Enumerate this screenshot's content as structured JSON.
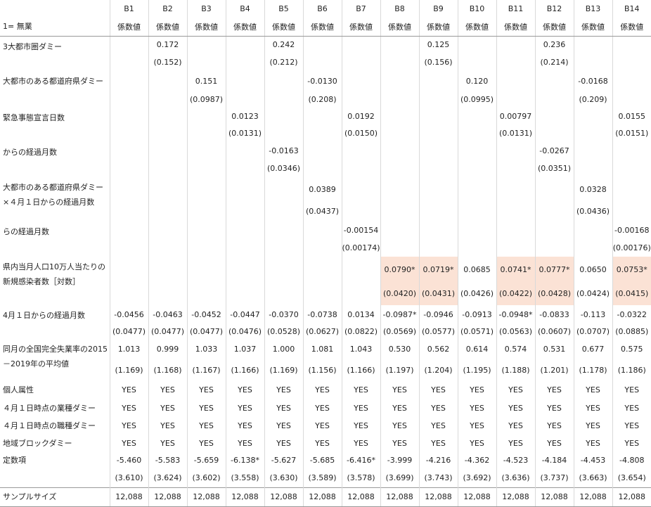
{
  "columns": [
    "B1",
    "B2",
    "B3",
    "B4",
    "B5",
    "B6",
    "B7",
    "B8",
    "B9",
    "B10",
    "B11",
    "B12",
    "B13",
    "B14"
  ],
  "coef_label": "係数値",
  "header_left": "1= 無業",
  "highlight_color": "#fbe2d5",
  "rows": [
    {
      "label": "3大都市圏ダミー",
      "coef": [
        "",
        "0.172",
        "",
        "",
        "0.242",
        "",
        "",
        "",
        "0.125",
        "",
        "",
        "0.236",
        "",
        ""
      ],
      "se": [
        "",
        "(0.152)",
        "",
        "",
        "(0.212)",
        "",
        "",
        "",
        "(0.156)",
        "",
        "",
        "(0.214)",
        "",
        ""
      ]
    },
    {
      "label": "大都市のある都道府県ダミー",
      "coef": [
        "",
        "",
        "0.151",
        "",
        "",
        "-0.0130",
        "",
        "",
        "",
        "0.120",
        "",
        "",
        "-0.0168",
        ""
      ],
      "se": [
        "",
        "",
        "(0.0987)",
        "",
        "",
        "(0.208)",
        "",
        "",
        "",
        "(0.0995)",
        "",
        "",
        "(0.209)",
        ""
      ]
    },
    {
      "label": "緊急事態宣言日数",
      "coef": [
        "",
        "",
        "",
        "0.0123",
        "",
        "",
        "0.0192",
        "",
        "",
        "",
        "0.00797",
        "",
        "",
        "0.0155"
      ],
      "se": [
        "",
        "",
        "",
        "(0.0131)",
        "",
        "",
        "(0.0150)",
        "",
        "",
        "",
        "(0.0131)",
        "",
        "",
        "(0.0151)"
      ]
    },
    {
      "label": "からの経過月数",
      "coef": [
        "",
        "",
        "",
        "",
        "-0.0163",
        "",
        "",
        "",
        "",
        "",
        "",
        "-0.0267",
        "",
        ""
      ],
      "se": [
        "",
        "",
        "",
        "",
        "(0.0346)",
        "",
        "",
        "",
        "",
        "",
        "",
        "(0.0351)",
        "",
        ""
      ]
    },
    {
      "label": "大都市のある都道府県ダミー\n×４月１日からの経過月数",
      "coef": [
        "",
        "",
        "",
        "",
        "",
        "0.0389",
        "",
        "",
        "",
        "",
        "",
        "",
        "0.0328",
        ""
      ],
      "se": [
        "",
        "",
        "",
        "",
        "",
        "(0.0437)",
        "",
        "",
        "",
        "",
        "",
        "",
        "(0.0436)",
        ""
      ]
    },
    {
      "label": "らの経過月数",
      "coef": [
        "",
        "",
        "",
        "",
        "",
        "",
        "-0.00154",
        "",
        "",
        "",
        "",
        "",
        "",
        "-0.00168"
      ],
      "se": [
        "",
        "",
        "",
        "",
        "",
        "",
        "(0.00174)",
        "",
        "",
        "",
        "",
        "",
        "",
        "(0.00176)"
      ]
    },
    {
      "label": "県内当月人口10万人当たりの\n新規感染者数［対数］",
      "coef": [
        "",
        "",
        "",
        "",
        "",
        "",
        "",
        "0.0790*",
        "0.0719*",
        "0.0685",
        "0.0741*",
        "0.0777*",
        "0.0650",
        "0.0753*"
      ],
      "se": [
        "",
        "",
        "",
        "",
        "",
        "",
        "",
        "(0.0420)",
        "(0.0431)",
        "(0.0426)",
        "(0.0422)",
        "(0.0428)",
        "(0.0424)",
        "(0.0415)"
      ],
      "highlight": [
        false,
        false,
        false,
        false,
        false,
        false,
        false,
        true,
        true,
        false,
        true,
        true,
        false,
        true
      ]
    },
    {
      "label": "4月１日からの経過月数",
      "coef": [
        "-0.0456",
        "-0.0463",
        "-0.0452",
        "-0.0447",
        "-0.0370",
        "-0.0738",
        "0.0134",
        "-0.0987*",
        "-0.0946",
        "-0.0913",
        "-0.0948*",
        "-0.0833",
        "-0.113",
        "-0.0322"
      ],
      "se": [
        "(0.0477)",
        "(0.0477)",
        "(0.0477)",
        "(0.0476)",
        "(0.0528)",
        "(0.0627)",
        "(0.0822)",
        "(0.0569)",
        "(0.0577)",
        "(0.0571)",
        "(0.0563)",
        "(0.0607)",
        "(0.0707)",
        "(0.0885)"
      ]
    },
    {
      "label": "同月の全国完全失業率の2015\n－2019年の平均値",
      "coef": [
        "1.013",
        "0.999",
        "1.033",
        "1.037",
        "1.000",
        "1.081",
        "1.043",
        "0.530",
        "0.562",
        "0.614",
        "0.574",
        "0.531",
        "0.677",
        "0.575"
      ],
      "se": [
        "(1.169)",
        "(1.168)",
        "(1.167)",
        "(1.166)",
        "(1.169)",
        "(1.156)",
        "(1.166)",
        "(1.197)",
        "(1.204)",
        "(1.195)",
        "(1.188)",
        "(1.201)",
        "(1.178)",
        "(1.186)"
      ]
    }
  ],
  "yes_rows": [
    {
      "label": "個人属性",
      "values": [
        "YES",
        "YES",
        "YES",
        "YES",
        "YES",
        "YES",
        "YES",
        "YES",
        "YES",
        "YES",
        "YES",
        "YES",
        "YES",
        "YES"
      ]
    },
    {
      "label": "４月１日時点の業種ダミー",
      "values": [
        "YES",
        "YES",
        "YES",
        "YES",
        "YES",
        "YES",
        "YES",
        "YES",
        "YES",
        "YES",
        "YES",
        "YES",
        "YES",
        "YES"
      ]
    },
    {
      "label": "４月１日時点の職種ダミー",
      "values": [
        "YES",
        "YES",
        "YES",
        "YES",
        "YES",
        "YES",
        "YES",
        "YES",
        "YES",
        "YES",
        "YES",
        "YES",
        "YES",
        "YES"
      ]
    },
    {
      "label": "地域ブロックダミー",
      "values": [
        "YES",
        "YES",
        "YES",
        "YES",
        "YES",
        "YES",
        "YES",
        "YES",
        "YES",
        "YES",
        "YES",
        "YES",
        "YES",
        "YES"
      ]
    }
  ],
  "constant": {
    "label": "定数項",
    "coef": [
      "-5.460",
      "-5.583",
      "-5.659",
      "-6.138*",
      "-5.627",
      "-5.685",
      "-6.416*",
      "-3.999",
      "-4.216",
      "-4.362",
      "-4.523",
      "-4.184",
      "-4.453",
      "-4.808"
    ],
    "se": [
      "(3.610)",
      "(3.624)",
      "(3.602)",
      "(3.558)",
      "(3.630)",
      "(3.589)",
      "(3.578)",
      "(3.699)",
      "(3.743)",
      "(3.692)",
      "(3.636)",
      "(3.737)",
      "(3.663)",
      "(3.654)"
    ]
  },
  "sample": {
    "label": "サンプルサイズ",
    "values": [
      "12,088",
      "12,088",
      "12,088",
      "12,088",
      "12,088",
      "12,088",
      "12,088",
      "12,088",
      "12,088",
      "12,088",
      "12,088",
      "12,088",
      "12,088",
      "12,088"
    ]
  }
}
